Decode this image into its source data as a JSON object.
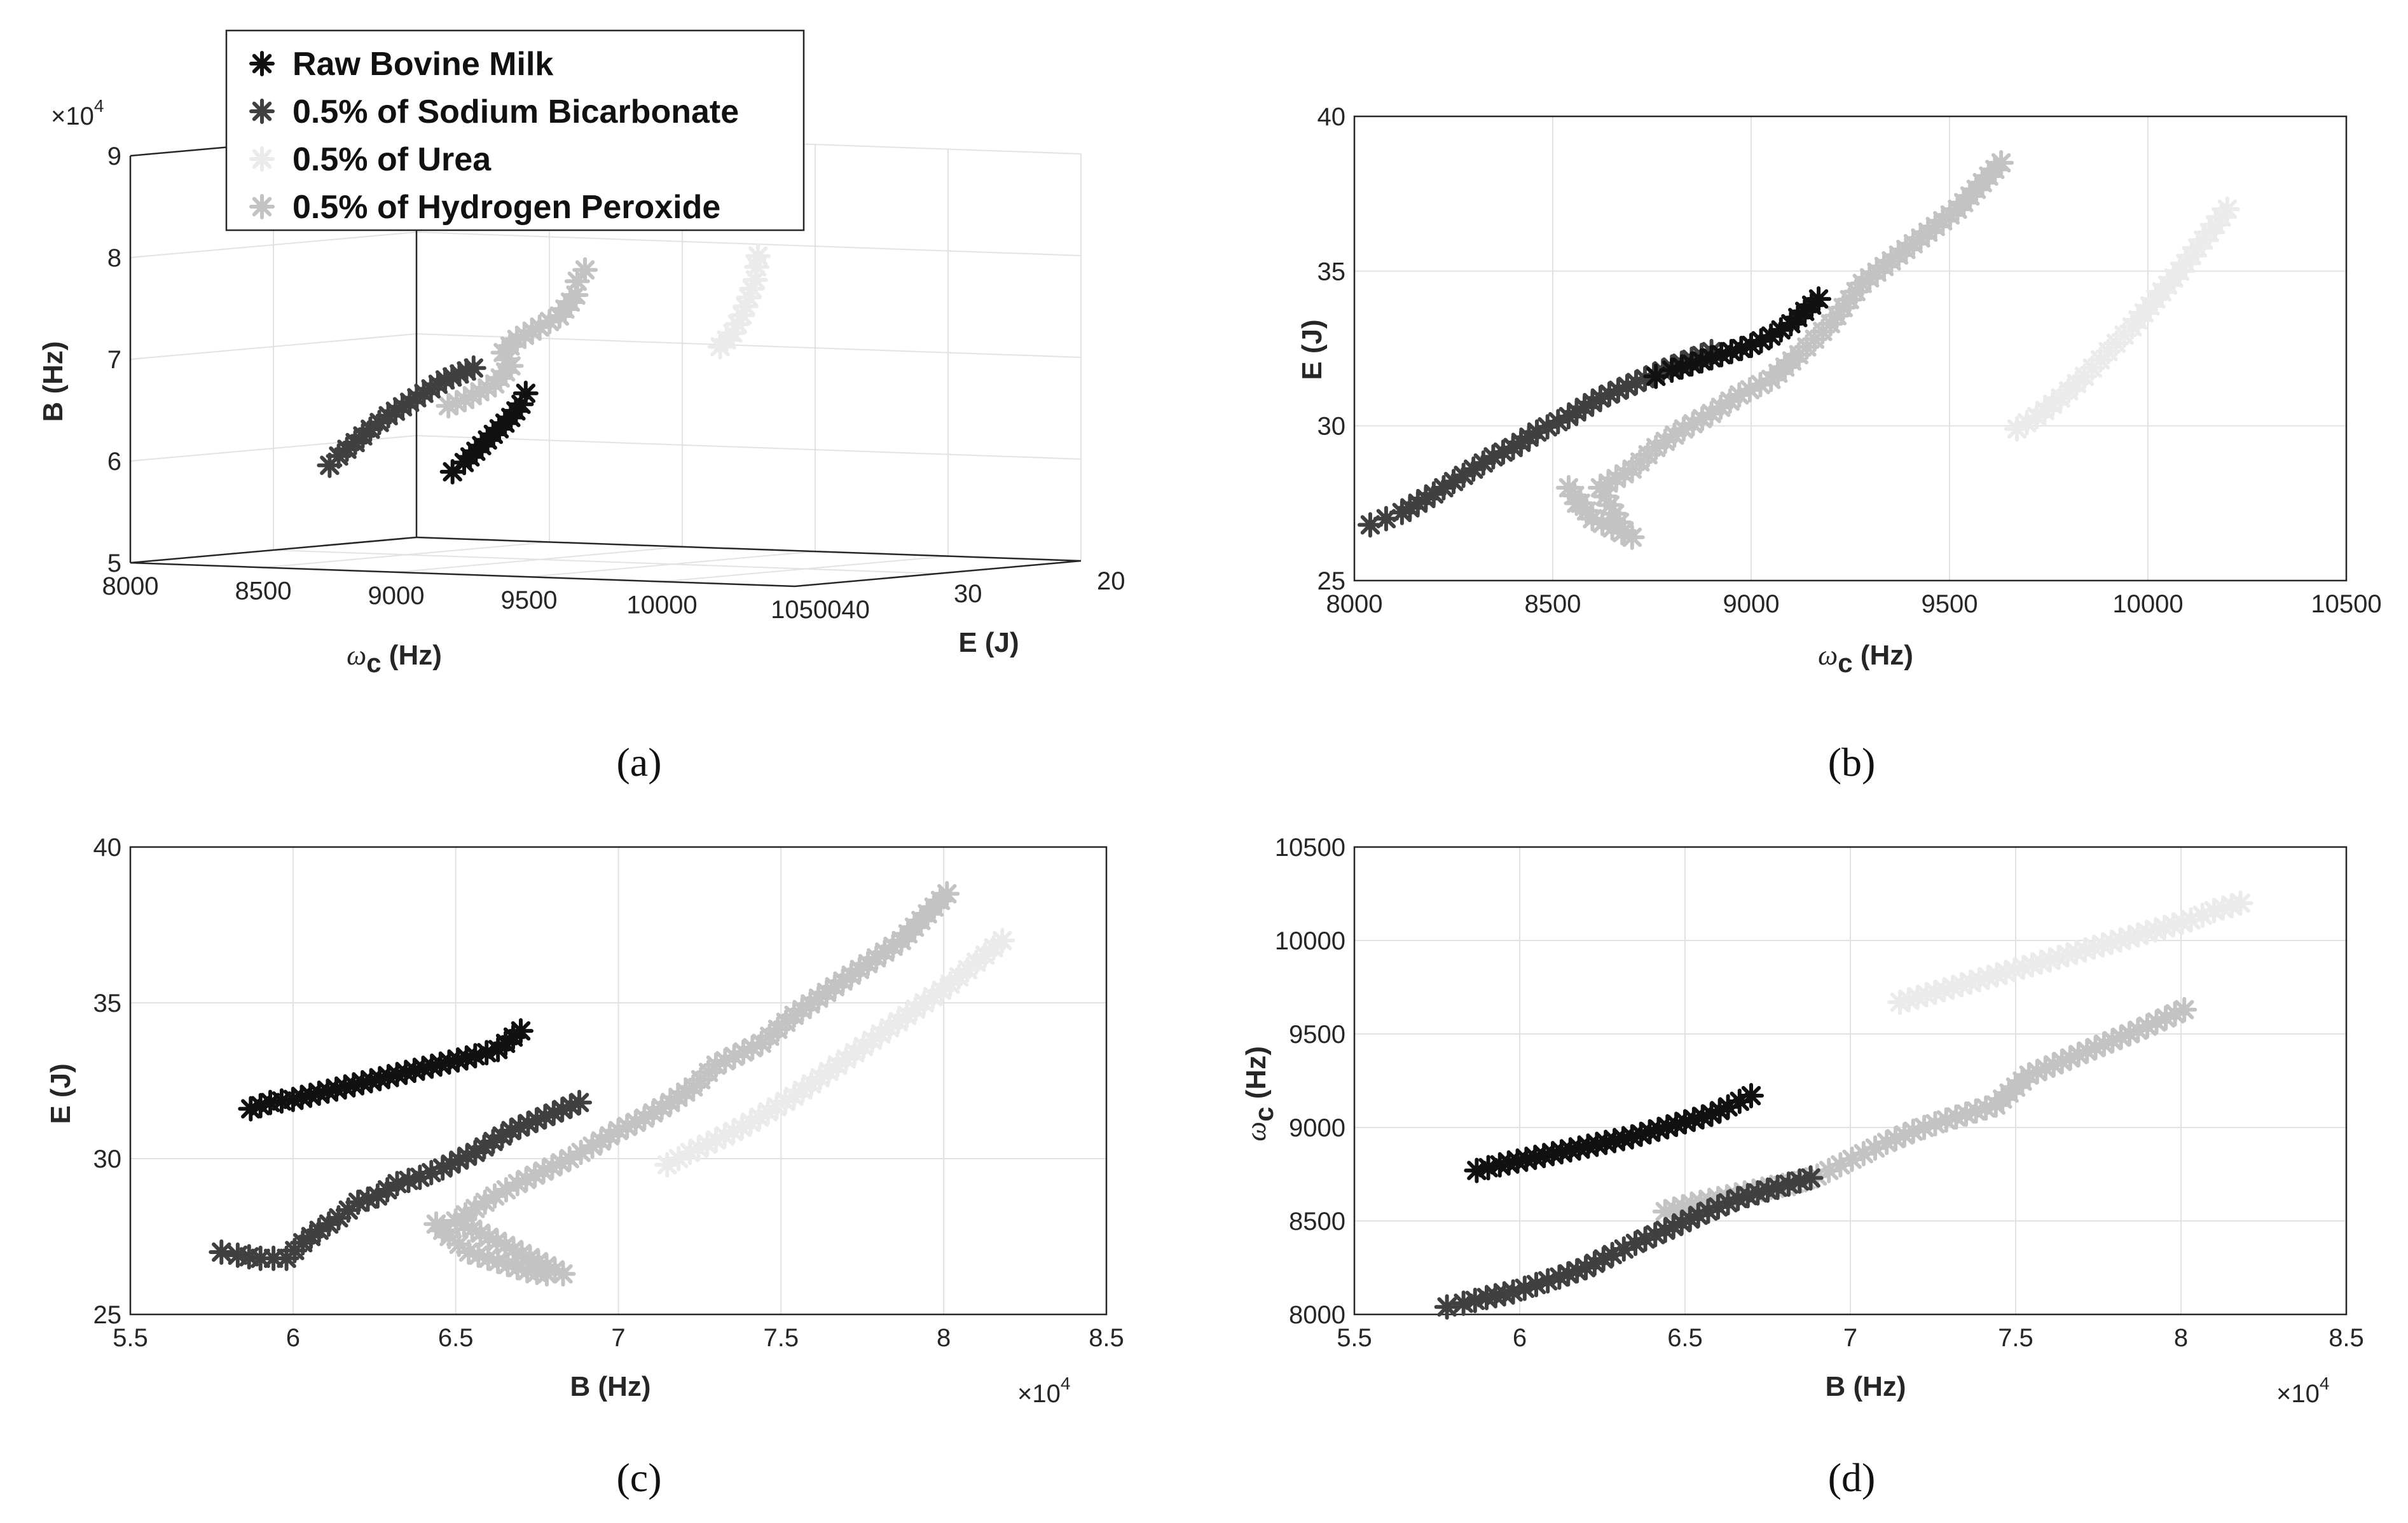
{
  "figure": {
    "panel_labels": [
      "(a)",
      "(b)",
      "(c)",
      "(d)"
    ],
    "legend": [
      "Raw Bovine Milk",
      "0.5% of Sodium Bicarbonate",
      "0.5% of Urea",
      "0.5% of Hydrogen Peroxide"
    ],
    "exp_label": "×10",
    "exp_sup": "4"
  },
  "colors": {
    "raw": "#111111",
    "bicarb": "#404040",
    "urea": "#ebebeb",
    "peroxide": "#c3c3c3",
    "axis": "#262626",
    "grid": "#e2e2e2"
  },
  "chart_data": [
    {
      "panel": "a",
      "type": "scatter3d",
      "xlabel": "ω",
      "xlabel_sub": "c",
      "xlabel_unit": " (Hz)",
      "ylabel": "E (J)",
      "zlabel": "B (Hz)",
      "x_ticks": [
        "8000",
        "8500",
        "9000",
        "9500",
        "10000",
        "1050040"
      ],
      "y_ticks": [
        "30",
        "20"
      ],
      "z_ticks": [
        "5",
        "6",
        "7",
        "8",
        "9"
      ],
      "z_exponent": "4",
      "series": [
        {
          "name": "Raw Bovine Milk",
          "color_key": "raw",
          "x": [
            8760,
            8820,
            8880,
            8940,
            9000,
            9060,
            9120,
            9170
          ],
          "y": [
            31.6,
            31.9,
            32.2,
            32.5,
            32.8,
            33.1,
            33.5,
            34.1
          ],
          "z": [
            58600,
            59600,
            60800,
            62000,
            63200,
            64400,
            65800,
            67000
          ]
        },
        {
          "name": "0.5% of Sodium Bicarbonate",
          "color_key": "bicarb",
          "x": [
            8050,
            8100,
            8200,
            8300,
            8400,
            8550,
            8700,
            8850
          ],
          "y": [
            27.0,
            27.3,
            28.0,
            28.8,
            29.4,
            30.2,
            31.0,
            31.8
          ],
          "z": [
            58000,
            59000,
            60500,
            62000,
            63500,
            65500,
            67500,
            68900
          ]
        },
        {
          "name": "0.5% of Urea",
          "color_key": "urea",
          "x": [
            9670,
            9750,
            9850,
            9950,
            10050,
            10120,
            10200
          ],
          "y": [
            29.8,
            30.4,
            31.6,
            33.0,
            34.4,
            35.6,
            37.0
          ],
          "z": [
            71500,
            73000,
            75000,
            77000,
            79000,
            80500,
            81800
          ]
        },
        {
          "name": "0.5% of Hydrogen Peroxide",
          "color_key": "peroxide",
          "x": [
            8540,
            8580,
            8650,
            8700,
            8800,
            8900,
            9050,
            9200,
            9380,
            9520,
            9630
          ],
          "y": [
            27.8,
            27.4,
            26.6,
            26.4,
            28.8,
            29.7,
            30.9,
            32.3,
            34.5,
            37.0,
            38.5
          ],
          "z": [
            64400,
            65000,
            66500,
            68300,
            70000,
            71500,
            73000,
            74400,
            76900,
            78700,
            80100
          ]
        }
      ]
    },
    {
      "panel": "b",
      "type": "scatter",
      "xlabel": "ω",
      "xlabel_sub": "c",
      "xlabel_unit": " (Hz)",
      "ylabel": "E (J)",
      "xlim": [
        8000,
        10500
      ],
      "ylim": [
        25,
        40
      ],
      "x_ticks": [
        "8000",
        "8500",
        "9000",
        "9500",
        "10000",
        "10500"
      ],
      "y_ticks": [
        "25",
        "30",
        "35",
        "40"
      ],
      "series": [
        {
          "name": "Raw Bovine Milk",
          "color_key": "raw",
          "x": [
            8760,
            8800,
            8850,
            8900,
            8950,
            9000,
            9050,
            9100,
            9170
          ],
          "y": [
            31.6,
            31.8,
            32.0,
            32.2,
            32.4,
            32.6,
            32.9,
            33.3,
            34.1
          ]
        },
        {
          "name": "0.5% of Sodium Bicarbonate",
          "color_key": "bicarb",
          "x": [
            8040,
            8080,
            8120,
            8160,
            8200,
            8250,
            8300,
            8350,
            8400,
            8460,
            8540,
            8620,
            8710,
            8800,
            8900
          ],
          "y": [
            26.8,
            27.0,
            27.2,
            27.5,
            27.8,
            28.2,
            28.6,
            29.0,
            29.3,
            29.8,
            30.3,
            30.9,
            31.4,
            31.9,
            32.4
          ]
        },
        {
          "name": "0.5% of Urea",
          "color_key": "urea",
          "x": [
            9670,
            9720,
            9780,
            9840,
            9900,
            9960,
            10020,
            10080,
            10140,
            10200
          ],
          "y": [
            29.9,
            30.3,
            30.9,
            31.6,
            32.4,
            33.2,
            34.1,
            35.0,
            36.0,
            37.0
          ]
        },
        {
          "name": "0.5% of Hydrogen Peroxide",
          "color_key": "peroxide",
          "x": [
            8560,
            8540,
            8600,
            8650,
            8700,
            8680,
            8620,
            8700,
            8760,
            8830,
            8900,
            8970,
            9050,
            9120,
            9200,
            9280,
            9390,
            9520,
            9630
          ],
          "y": [
            27.5,
            28.0,
            27.0,
            26.7,
            26.4,
            26.6,
            28.0,
            28.6,
            29.3,
            29.9,
            30.4,
            31.0,
            31.5,
            32.3,
            33.3,
            34.6,
            35.7,
            37.0,
            38.5
          ]
        }
      ]
    },
    {
      "panel": "c",
      "type": "scatter",
      "xlabel": "B (Hz)",
      "ylabel": "E (J)",
      "xlim": [
        55000,
        85000
      ],
      "ylim": [
        25,
        40
      ],
      "x_ticks": [
        "5.5",
        "6",
        "6.5",
        "7",
        "7.5",
        "8",
        "8.5"
      ],
      "y_ticks": [
        "25",
        "30",
        "35",
        "40"
      ],
      "x_exponent": "4",
      "series": [
        {
          "name": "Raw Bovine Milk",
          "color_key": "raw",
          "x": [
            58700,
            59300,
            60000,
            60800,
            61600,
            62400,
            63200,
            64000,
            64800,
            65600,
            66300,
            67000
          ],
          "y": [
            31.6,
            31.8,
            31.9,
            32.1,
            32.3,
            32.5,
            32.7,
            32.9,
            33.1,
            33.3,
            33.5,
            34.1
          ]
        },
        {
          "name": "0.5% of Sodium Bicarbonate",
          "color_key": "bicarb",
          "x": [
            57800,
            58300,
            59000,
            59800,
            60300,
            60800,
            61400,
            62000,
            62600,
            63200,
            63900,
            64600,
            65600,
            66700,
            68800
          ],
          "y": [
            27.0,
            26.9,
            26.8,
            26.8,
            27.3,
            27.7,
            28.1,
            28.6,
            28.8,
            29.2,
            29.4,
            29.7,
            30.2,
            30.9,
            31.8
          ]
        },
        {
          "name": "0.5% of Urea",
          "color_key": "urea",
          "x": [
            71500,
            72200,
            73000,
            73800,
            74600,
            75400,
            76200,
            77000,
            77800,
            78600,
            79400,
            80200,
            81000,
            81800
          ],
          "y": [
            29.8,
            30.2,
            30.6,
            31.0,
            31.5,
            32.0,
            32.6,
            33.2,
            33.8,
            34.4,
            35.0,
            35.6,
            36.3,
            37.0
          ]
        },
        {
          "name": "0.5% of Hydrogen Peroxide",
          "color_key": "peroxide",
          "x": [
            64400,
            64800,
            65400,
            66000,
            66600,
            67200,
            67800,
            68300,
            65000,
            65600,
            66200,
            66900,
            67700,
            68500,
            69200,
            70000,
            70800,
            71600,
            72300,
            73000,
            74400,
            75400,
            76900,
            78700,
            80100
          ],
          "y": [
            27.9,
            27.5,
            27.0,
            26.8,
            26.6,
            26.4,
            26.3,
            26.3,
            28.0,
            28.4,
            28.8,
            29.2,
            29.6,
            30.0,
            30.4,
            30.9,
            31.3,
            31.8,
            32.3,
            33.0,
            33.7,
            34.6,
            35.7,
            37.0,
            38.5
          ]
        }
      ]
    },
    {
      "panel": "d",
      "type": "scatter",
      "xlabel": "B (Hz)",
      "ylabel": "ω",
      "ylabel_sub": "c",
      "ylabel_unit": " (Hz)",
      "xlim": [
        55000,
        85000
      ],
      "ylim": [
        8000,
        10500
      ],
      "x_ticks": [
        "5.5",
        "6",
        "6.5",
        "7",
        "7.5",
        "8",
        "8.5"
      ],
      "y_ticks": [
        "8000",
        "8500",
        "9000",
        "9500",
        "10000",
        "10500"
      ],
      "x_exponent": "4",
      "series": [
        {
          "name": "Raw Bovine Milk",
          "color_key": "raw",
          "x": [
            58700,
            59400,
            60200,
            61000,
            61800,
            62600,
            63400,
            64200,
            65000,
            65800,
            66300,
            67000
          ],
          "y": [
            8770,
            8800,
            8830,
            8860,
            8890,
            8920,
            8950,
            8990,
            9030,
            9070,
            9110,
            9170
          ]
        },
        {
          "name": "0.5% of Sodium Bicarbonate",
          "color_key": "bicarb",
          "x": [
            57800,
            58300,
            59000,
            59800,
            60500,
            61200,
            62000,
            62800,
            63500,
            64400,
            65400,
            66600,
            67800,
            68800
          ],
          "y": [
            8040,
            8060,
            8090,
            8120,
            8160,
            8200,
            8250,
            8320,
            8380,
            8450,
            8530,
            8620,
            8680,
            8730
          ]
        },
        {
          "name": "0.5% of Urea",
          "color_key": "urea",
          "x": [
            71500,
            72300,
            73100,
            73900,
            74700,
            75500,
            76300,
            77100,
            77900,
            78700,
            79500,
            80300,
            81000,
            81800
          ],
          "y": [
            9670,
            9710,
            9750,
            9790,
            9830,
            9870,
            9910,
            9950,
            9990,
            10030,
            10070,
            10110,
            10160,
            10200
          ]
        },
        {
          "name": "0.5% of Hydrogen Peroxide",
          "color_key": "peroxide",
          "x": [
            64400,
            65200,
            66000,
            66800,
            67600,
            68300,
            69000,
            69700,
            70400,
            71100,
            71900,
            72900,
            74400,
            75400,
            76900,
            78700,
            80100
          ],
          "y": [
            8550,
            8590,
            8620,
            8650,
            8680,
            8700,
            8740,
            8800,
            8860,
            8920,
            8980,
            9040,
            9120,
            9280,
            9390,
            9520,
            9630
          ]
        }
      ]
    }
  ]
}
